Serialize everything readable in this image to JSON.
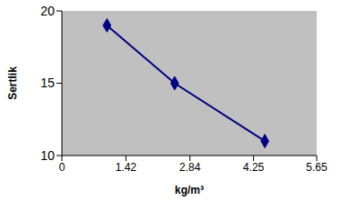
{
  "chart_data": {
    "type": "line",
    "x_label": "kg/m³",
    "y_label": "Sertlik",
    "x": [
      1.0,
      2.5,
      4.5
    ],
    "values": [
      19,
      15,
      11
    ],
    "color": "#000080",
    "marker": "diamond",
    "xlim": [
      0,
      5.65
    ],
    "xticks": [
      0,
      1.42,
      2.84,
      4.25,
      5.65
    ],
    "ylim": [
      10,
      20
    ],
    "yticks": [
      10,
      15,
      20
    ],
    "grid": false
  }
}
